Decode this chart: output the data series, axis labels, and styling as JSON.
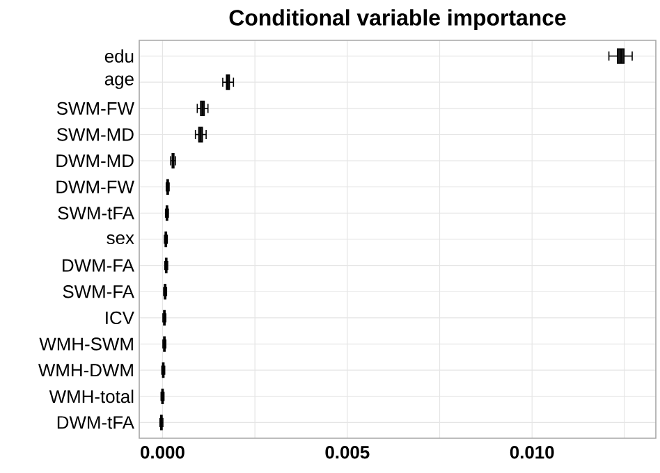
{
  "chart_data": {
    "type": "box",
    "title": "Conditional variable importance",
    "orientation": "horizontal",
    "grid": true,
    "color": "#1a1a1a",
    "categories": [
      "edu",
      "age",
      "SWM-FW",
      "SWM-MD",
      "DWM-MD",
      "DWM-FW",
      "SWM-tFA",
      "sex",
      "DWM-FA",
      "SWM-FA",
      "ICV",
      "WMH-SWM",
      "WMH-DWM",
      "WMH-total",
      "DWM-tFA"
    ],
    "xlim": [
      -0.00063,
      0.01335
    ],
    "xticks": [
      {
        "value": 0,
        "label": "0.000"
      },
      {
        "value": 0.0025,
        "label": null
      },
      0.005,
      {
        "value": 0.0075,
        "label": null
      },
      {
        "value": 0.01,
        "label": "0.010"
      },
      {
        "value": 0.0125,
        "label": null
      }
    ],
    "boxes": [
      {
        "low": 0.01208,
        "q1": 0.01231,
        "median": 0.01241,
        "q3": 0.01249,
        "high": 0.01271
      },
      {
        "low": 0.00163,
        "q1": 0.00173,
        "median": 0.00176,
        "q3": 0.00181,
        "high": 0.00192
      },
      {
        "low": 0.00094,
        "q1": 0.00103,
        "median": 0.00108,
        "q3": 0.00113,
        "high": 0.00123
      },
      {
        "low": 0.00089,
        "q1": 0.00098,
        "median": 0.00103,
        "q3": 0.00108,
        "high": 0.00118
      },
      {
        "low": 0.00022,
        "q1": 0.00026,
        "median": 0.00028,
        "q3": 0.00031,
        "high": 0.00035
      },
      {
        "low": 0.0001,
        "q1": 0.00012,
        "median": 0.00014,
        "q3": 0.00016,
        "high": 0.00018
      },
      {
        "low": 8e-05,
        "q1": 0.0001,
        "median": 0.00012,
        "q3": 0.00014,
        "high": 0.00016
      },
      {
        "low": 5e-05,
        "q1": 7e-05,
        "median": 9e-05,
        "q3": 0.00011,
        "high": 0.00013
      },
      {
        "low": 6e-05,
        "q1": 8e-05,
        "median": 0.0001,
        "q3": 0.00012,
        "high": 0.00014
      },
      {
        "low": 3e-05,
        "q1": 5e-05,
        "median": 7e-05,
        "q3": 9e-05,
        "high": 0.00011
      },
      {
        "low": 1e-05,
        "q1": 3e-05,
        "median": 5e-05,
        "q3": 7e-05,
        "high": 9e-05
      },
      {
        "low": 1e-05,
        "q1": 3e-05,
        "median": 5e-05,
        "q3": 7e-05,
        "high": 9e-05
      },
      {
        "low": -2e-05,
        "q1": 0,
        "median": 2e-05,
        "q3": 4e-05,
        "high": 6e-05
      },
      {
        "low": -4e-05,
        "q1": -2e-05,
        "median": 0,
        "q3": 2e-05,
        "high": 4e-05
      },
      {
        "low": -7e-05,
        "q1": -5e-05,
        "median": -3e-05,
        "q3": -1e-05,
        "high": 1e-05
      }
    ]
  }
}
